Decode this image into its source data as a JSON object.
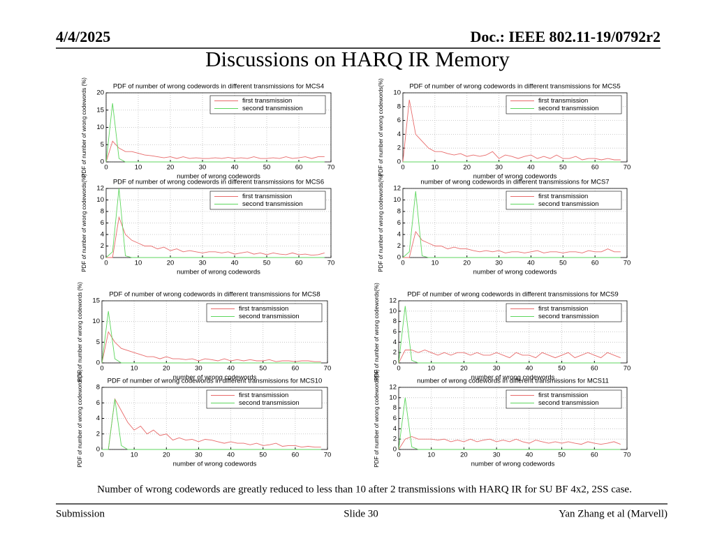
{
  "header": {
    "date": "4/4/2025",
    "doc": "Doc.: IEEE 802.11-19/0792r2",
    "title": "Discussions on HARQ IR Memory"
  },
  "caption": "Number of wrong codewords are greatly reduced to less than 10 after 2 transmissions with HARQ IR for SU BF 4x2, 2SS case.",
  "footer": {
    "left": "Submission",
    "center": "Slide 30",
    "right": "Yan Zhang et al (Marvell)"
  },
  "chart_data": [
    {
      "type": "line",
      "title": "PDF of number of wrong codewords in different transmissions for MCS4",
      "xlabel": "number of wrong codewords",
      "ylabel": "PDF of number of wrong codewords (%)",
      "grid": true,
      "legend": "upper right",
      "x": [
        0,
        2,
        4,
        6,
        8,
        10,
        12,
        14,
        16,
        18,
        20,
        22,
        24,
        26,
        28,
        30,
        32,
        34,
        36,
        38,
        40,
        42,
        44,
        46,
        48,
        50,
        52,
        54,
        56,
        58,
        60,
        62,
        64,
        66,
        68
      ],
      "xlim": [
        0,
        70
      ],
      "xticks": [
        0,
        10,
        20,
        30,
        40,
        50,
        60,
        70
      ],
      "ylim": [
        0,
        20
      ],
      "yticks": [
        0,
        5,
        10,
        15,
        20
      ],
      "series": [
        {
          "name": "first transmission",
          "color": "#e86a6a",
          "values": [
            0,
            6,
            4,
            3,
            3,
            2.5,
            2,
            1.8,
            1.5,
            1.2,
            1.5,
            1,
            1.5,
            1,
            1.2,
            1,
            1,
            1.2,
            1,
            1.3,
            1,
            1.2,
            1,
            1.5,
            1,
            1,
            1.2,
            1,
            1.5,
            1,
            1.2,
            1.5,
            1,
            1.5,
            1.5
          ]
        },
        {
          "name": "second transmission",
          "color": "#5cd65c",
          "values": [
            0,
            17,
            1,
            0,
            0,
            0,
            0,
            0,
            0,
            0,
            0,
            0,
            0,
            0,
            0,
            0,
            0,
            0,
            0,
            0,
            0,
            0,
            0,
            0,
            0,
            0,
            0,
            0,
            0,
            0,
            0,
            0,
            0,
            0,
            0
          ]
        }
      ]
    },
    {
      "type": "line",
      "title": "PDF of number of wrong codewords in different transmissions for MCS5",
      "xlabel": "number of wrong codewords",
      "ylabel": "PDF of number of wrong codewords(%)",
      "grid": true,
      "legend": "upper right",
      "x": [
        0,
        2,
        4,
        6,
        8,
        10,
        12,
        14,
        16,
        18,
        20,
        22,
        24,
        26,
        28,
        30,
        32,
        34,
        36,
        38,
        40,
        42,
        44,
        46,
        48,
        50,
        52,
        54,
        56,
        58,
        60,
        62,
        64,
        66,
        68
      ],
      "xlim": [
        0,
        70
      ],
      "xticks": [
        0,
        10,
        20,
        30,
        40,
        50,
        60,
        70
      ],
      "ylim": [
        0,
        10
      ],
      "yticks": [
        0,
        2,
        4,
        6,
        8,
        10
      ],
      "series": [
        {
          "name": "first transmission",
          "color": "#e86a6a",
          "values": [
            0,
            9,
            4,
            3,
            2,
            1.5,
            1.5,
            1.2,
            1,
            1.2,
            0.8,
            1,
            0.8,
            1,
            1.5,
            0.5,
            1,
            0.8,
            0.5,
            0.8,
            1,
            0.5,
            0.8,
            0.5,
            1,
            0.5,
            0.5,
            0.8,
            0.3,
            0.5,
            0.5,
            0.3,
            0.5,
            0.3,
            0.3
          ]
        },
        {
          "name": "second transmission",
          "color": "#5cd65c",
          "values": [
            0,
            0,
            0,
            0,
            0,
            0,
            0,
            0,
            0,
            0,
            0,
            0,
            0,
            0,
            0,
            0,
            0,
            0,
            0,
            0,
            0,
            0,
            0,
            0,
            0,
            0,
            0,
            0,
            0,
            0,
            0,
            0,
            0,
            0,
            0
          ]
        }
      ]
    },
    {
      "type": "line",
      "title": "PDF of number of wrong codewords in different transmissions for MCS6",
      "xlabel": "number of wrong codewords",
      "ylabel": "PDF of number of wrong codewords(%)",
      "grid": true,
      "legend": "upper right",
      "x": [
        0,
        2,
        4,
        6,
        8,
        10,
        12,
        14,
        16,
        18,
        20,
        22,
        24,
        26,
        28,
        30,
        32,
        34,
        36,
        38,
        40,
        42,
        44,
        46,
        48,
        50,
        52,
        54,
        56,
        58,
        60,
        62,
        64,
        66,
        68
      ],
      "xlim": [
        0,
        70
      ],
      "xticks": [
        0,
        10,
        20,
        30,
        40,
        50,
        60,
        70
      ],
      "ylim": [
        0,
        12
      ],
      "yticks": [
        0,
        2,
        4,
        6,
        8,
        10,
        12
      ],
      "series": [
        {
          "name": "first transmission",
          "color": "#e86a6a",
          "values": [
            0,
            0,
            7,
            4,
            3,
            2.5,
            2,
            2,
            1.5,
            1.8,
            1.2,
            1.5,
            1,
            1.2,
            1,
            0.8,
            1,
            1,
            0.8,
            1,
            0.6,
            0.8,
            1,
            0.6,
            0.8,
            0.5,
            0.8,
            0.6,
            0.5,
            0.8,
            0.5,
            0.6,
            0.4,
            0.5,
            0.8
          ]
        },
        {
          "name": "second transmission",
          "color": "#5cd65c",
          "values": [
            0,
            1,
            12,
            0.3,
            0,
            0,
            0,
            0,
            0,
            0,
            0,
            0,
            0,
            0,
            0,
            0,
            0,
            0,
            0,
            0,
            0,
            0,
            0,
            0,
            0,
            0,
            0,
            0,
            0,
            0,
            0,
            0,
            0,
            0,
            0
          ]
        }
      ]
    },
    {
      "type": "line",
      "title": "number of wrong codewords in different transmissions for MCS7",
      "xlabel": "number of wrong codewords",
      "ylabel": "PDF of number of wrong codewords(%)",
      "grid": true,
      "legend": "upper right",
      "x": [
        0,
        2,
        4,
        6,
        8,
        10,
        12,
        14,
        16,
        18,
        20,
        22,
        24,
        26,
        28,
        30,
        32,
        34,
        36,
        38,
        40,
        42,
        44,
        46,
        48,
        50,
        52,
        54,
        56,
        58,
        60,
        62,
        64,
        66,
        68
      ],
      "xlim": [
        0,
        70
      ],
      "xticks": [
        0,
        10,
        20,
        30,
        40,
        50,
        60,
        70
      ],
      "ylim": [
        0,
        12
      ],
      "yticks": [
        0,
        2,
        4,
        6,
        8,
        10,
        12
      ],
      "series": [
        {
          "name": "first transmission",
          "color": "#e86a6a",
          "values": [
            0,
            0,
            4.5,
            3,
            2.5,
            2,
            2,
            1.5,
            1.8,
            1.5,
            1.5,
            1.2,
            1,
            1.2,
            1,
            1.2,
            0.8,
            1,
            1,
            0.8,
            1,
            1.2,
            0.8,
            1,
            1,
            0.8,
            1,
            1,
            0.8,
            1.2,
            1,
            1,
            1.5,
            1,
            1
          ]
        },
        {
          "name": "second transmission",
          "color": "#5cd65c",
          "values": [
            0,
            1,
            11.5,
            0.3,
            0,
            0,
            0,
            0,
            0,
            0,
            0,
            0,
            0,
            0,
            0,
            0,
            0,
            0,
            0,
            0,
            0,
            0,
            0,
            0,
            0,
            0,
            0,
            0,
            0,
            0,
            0,
            0,
            0,
            0,
            0
          ]
        }
      ]
    },
    {
      "type": "line",
      "title": "PDF of number of wrong codewords in different transmissions for MCS8",
      "xlabel": "number of wrong codewords",
      "ylabel": "PDF of number of wrong codewords (%)",
      "grid": true,
      "legend": "upper right",
      "x": [
        0,
        2,
        4,
        6,
        8,
        10,
        12,
        14,
        16,
        18,
        20,
        22,
        24,
        26,
        28,
        30,
        32,
        34,
        36,
        38,
        40,
        42,
        44,
        46,
        48,
        50,
        52,
        54,
        56,
        58,
        60,
        62,
        64,
        66,
        68
      ],
      "xlim": [
        0,
        70
      ],
      "xticks": [
        0,
        10,
        20,
        30,
        40,
        50,
        60,
        70
      ],
      "ylim": [
        0,
        15
      ],
      "yticks": [
        0,
        5,
        10,
        15
      ],
      "series": [
        {
          "name": "first transmission",
          "color": "#e86a6a",
          "values": [
            0,
            7.5,
            5,
            3.5,
            3,
            2.5,
            2,
            1.5,
            1.5,
            1,
            1.5,
            1,
            1,
            0.8,
            1,
            0.5,
            1,
            0.8,
            0.5,
            1,
            0.5,
            0.8,
            0.5,
            0.8,
            0.5,
            0.5,
            0.8,
            0.3,
            0.5,
            0.5,
            0.3,
            0.5,
            0.5,
            0.3,
            0.3
          ]
        },
        {
          "name": "second transmission",
          "color": "#5cd65c",
          "values": [
            0,
            12.5,
            1,
            0,
            0,
            0,
            0,
            0,
            0,
            0,
            0,
            0,
            0,
            0,
            0,
            0,
            0,
            0,
            0,
            0,
            0,
            0,
            0,
            0,
            0,
            0,
            0,
            0,
            0,
            0,
            0,
            0,
            0,
            0,
            0
          ]
        }
      ]
    },
    {
      "type": "line",
      "title": "PDF of number of wrong codewords in different transmissions for MCS9",
      "xlabel": "number of wrong codewords",
      "ylabel": "PDF of number of wrong codewords(%)",
      "grid": true,
      "legend": "upper right",
      "x": [
        0,
        2,
        4,
        6,
        8,
        10,
        12,
        14,
        16,
        18,
        20,
        22,
        24,
        26,
        28,
        30,
        32,
        34,
        36,
        38,
        40,
        42,
        44,
        46,
        48,
        50,
        52,
        54,
        56,
        58,
        60,
        62,
        64,
        66,
        68
      ],
      "xlim": [
        0,
        70
      ],
      "xticks": [
        0,
        10,
        20,
        30,
        40,
        50,
        60,
        70
      ],
      "ylim": [
        0,
        12
      ],
      "yticks": [
        0,
        2,
        4,
        6,
        8,
        10,
        12
      ],
      "series": [
        {
          "name": "first transmission",
          "color": "#e86a6a",
          "values": [
            0,
            2.5,
            2.5,
            2,
            2.5,
            2,
            1.5,
            2,
            1.5,
            2,
            2,
            1.5,
            2,
            1.5,
            1.5,
            2,
            1.5,
            1,
            2,
            1.5,
            1.5,
            1,
            2,
            1.5,
            1,
            1.5,
            2,
            1,
            1.5,
            2,
            1.5,
            1,
            2,
            1.5,
            1
          ]
        },
        {
          "name": "second transmission",
          "color": "#5cd65c",
          "values": [
            0,
            11,
            0.5,
            0,
            0,
            0,
            0,
            0,
            0,
            0,
            0,
            0,
            0,
            0,
            0,
            0,
            0,
            0,
            0,
            0,
            0,
            0,
            0,
            0,
            0,
            0,
            0,
            0,
            0,
            0,
            0,
            0,
            0,
            0,
            0
          ]
        }
      ]
    },
    {
      "type": "line",
      "title": "PDF of number of wrong codewords in different transmissions for MCS10",
      "xlabel": "number of wrong codewords",
      "ylabel": "PDF of number of wrong codewords(%)",
      "grid": true,
      "legend": "upper right",
      "x": [
        0,
        2,
        4,
        6,
        8,
        10,
        12,
        14,
        16,
        18,
        20,
        22,
        24,
        26,
        28,
        30,
        32,
        34,
        36,
        38,
        40,
        42,
        44,
        46,
        48,
        50,
        52,
        54,
        56,
        58,
        60,
        62,
        64,
        66,
        68
      ],
      "xlim": [
        0,
        70
      ],
      "xticks": [
        0,
        10,
        20,
        30,
        40,
        50,
        60,
        70
      ],
      "ylim": [
        0,
        8
      ],
      "yticks": [
        0,
        2,
        4,
        6,
        8
      ],
      "series": [
        {
          "name": "first transmission",
          "color": "#e86a6a",
          "values": [
            0,
            0,
            6.5,
            5,
            3.5,
            2.5,
            3,
            2,
            2.5,
            1.8,
            2,
            1.2,
            1.5,
            1.2,
            1.3,
            1,
            1.3,
            1.2,
            1,
            0.8,
            1,
            0.8,
            0.8,
            0.6,
            0.8,
            0.5,
            0.6,
            0.8,
            0.4,
            0.5,
            0.5,
            0.3,
            0.4,
            0.3,
            0.3
          ]
        },
        {
          "name": "second transmission",
          "color": "#5cd65c",
          "values": [
            0,
            0,
            6.5,
            0.5,
            0,
            0,
            0,
            0,
            0,
            0,
            0,
            0,
            0,
            0,
            0,
            0,
            0,
            0,
            0,
            0,
            0,
            0,
            0,
            0,
            0,
            0,
            0,
            0,
            0,
            0,
            0,
            0,
            0,
            0,
            0
          ]
        }
      ]
    },
    {
      "type": "line",
      "title": "number of wrong codewords in different transmissions for MCS11",
      "xlabel": "number of wrong codewords",
      "ylabel": "PDF of number of wrong codewords(%)",
      "grid": true,
      "legend": "upper right",
      "x": [
        0,
        2,
        4,
        6,
        8,
        10,
        12,
        14,
        16,
        18,
        20,
        22,
        24,
        26,
        28,
        30,
        32,
        34,
        36,
        38,
        40,
        42,
        44,
        46,
        48,
        50,
        52,
        54,
        56,
        58,
        60,
        62,
        64,
        66,
        68
      ],
      "xlim": [
        0,
        70
      ],
      "xticks": [
        0,
        10,
        20,
        30,
        40,
        50,
        60,
        70
      ],
      "ylim": [
        0,
        12
      ],
      "yticks": [
        0,
        2,
        4,
        6,
        8,
        10,
        12
      ],
      "series": [
        {
          "name": "first transmission",
          "color": "#e86a6a",
          "values": [
            0,
            2,
            2.5,
            2,
            2,
            2,
            1.8,
            2,
            1.5,
            1.8,
            1.5,
            2,
            1.5,
            1.8,
            2,
            1.5,
            1.8,
            1.5,
            2,
            1.5,
            1.2,
            1.8,
            1.5,
            1.2,
            1.5,
            1.2,
            1.5,
            1.2,
            1,
            1.5,
            1.2,
            1,
            1.2,
            1.5,
            1
          ]
        },
        {
          "name": "second transmission",
          "color": "#5cd65c",
          "values": [
            0,
            10,
            0.5,
            0,
            0,
            0,
            0,
            0,
            0,
            0,
            0,
            0,
            0,
            0,
            0,
            0,
            0,
            0,
            0,
            0,
            0,
            0,
            0,
            0,
            0,
            0,
            0,
            0,
            0,
            0,
            0,
            0,
            0,
            0,
            0
          ]
        }
      ]
    }
  ]
}
